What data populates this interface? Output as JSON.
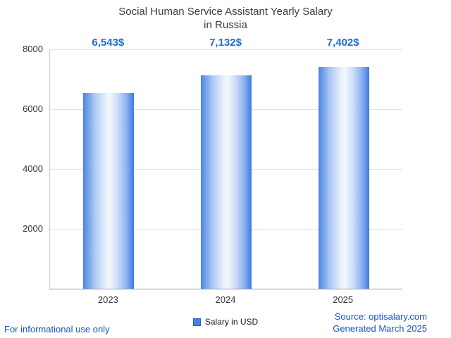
{
  "title": {
    "line1": "Social Human Service Assistant Yearly Salary",
    "line2": "in Russia"
  },
  "chart_data": {
    "type": "bar",
    "title": "Social Human Service Assistant Yearly Salary in Russia",
    "categories": [
      "2023",
      "2024",
      "2025"
    ],
    "values": [
      6543,
      7132,
      7402
    ],
    "value_labels": [
      "6,543$",
      "7,132$",
      "7,402$"
    ],
    "series": [
      {
        "name": "Salary in USD",
        "values": [
          6543,
          7132,
          7402
        ]
      }
    ],
    "xlabel": "",
    "ylabel": "",
    "ylim": [
      0,
      8000
    ],
    "yticks": [
      2000,
      4000,
      6000,
      8000
    ],
    "grid": true,
    "legend_position": "bottom",
    "bar_color": "#4a80e4"
  },
  "legend": {
    "label": "Salary in USD"
  },
  "footer": {
    "disclaimer": "For informational use only",
    "source": "Source: optisalary.com",
    "generated": "Generated March 2025"
  },
  "colors": {
    "value_label_blue": "#1b6ed6",
    "footer_link_blue": "#1155cc",
    "bar_edge_blue": "#4b83e5",
    "bar_center_light": "#f3f8fe",
    "gridline_gray": "#e2e2e2"
  }
}
